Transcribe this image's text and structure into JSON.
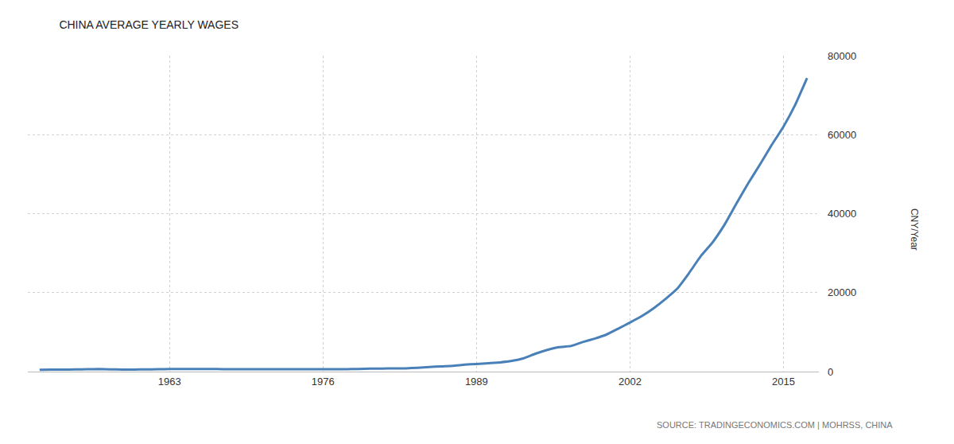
{
  "chart_data": {
    "type": "line",
    "title": "CHINA AVERAGE YEARLY WAGES",
    "y_label": "CNY/Year",
    "annotations": [
      "SOURCE: TRADINGECONOMICS.COM | MOHRSS, CHINA"
    ],
    "x": [
      1952,
      1953,
      1954,
      1955,
      1956,
      1957,
      1958,
      1959,
      1960,
      1961,
      1962,
      1963,
      1964,
      1965,
      1966,
      1967,
      1968,
      1969,
      1970,
      1971,
      1972,
      1973,
      1974,
      1975,
      1976,
      1977,
      1978,
      1979,
      1980,
      1981,
      1982,
      1983,
      1984,
      1985,
      1986,
      1987,
      1988,
      1989,
      1990,
      1991,
      1992,
      1993,
      1994,
      1995,
      1996,
      1997,
      1998,
      1999,
      2000,
      2001,
      2002,
      2003,
      2004,
      2005,
      2006,
      2007,
      2008,
      2009,
      2010,
      2011,
      2012,
      2013,
      2014,
      2015,
      2016,
      2017
    ],
    "values": [
      445,
      495,
      517,
      534,
      610,
      637,
      550,
      524,
      528,
      537,
      592,
      641,
      661,
      652,
      636,
      630,
      621,
      618,
      609,
      597,
      622,
      614,
      622,
      613,
      605,
      602,
      615,
      668,
      762,
      772,
      798,
      826,
      974,
      1148,
      1329,
      1459,
      1747,
      1935,
      2140,
      2340,
      2711,
      3371,
      4538,
      5500,
      6210,
      6470,
      7479,
      8346,
      9371,
      10870,
      12422,
      14040,
      16024,
      18364,
      21001,
      24932,
      29229,
      32736,
      37147,
      42452,
      47593,
      52388,
      57361,
      62029,
      67569,
      74318
    ],
    "color": "#4a80b8",
    "xlim": [
      1951,
      2018
    ],
    "xticks": [
      1963,
      1976,
      1989,
      2002,
      2015
    ],
    "ylim": [
      0,
      80000
    ],
    "yticks": [
      0,
      20000,
      40000,
      60000,
      80000
    ],
    "grid": true
  }
}
